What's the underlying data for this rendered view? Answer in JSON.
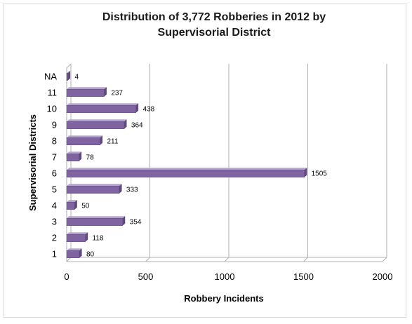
{
  "chart_data": {
    "type": "bar",
    "orientation": "horizontal",
    "title": "Distribution of 3,772 Robberies in 2012 by Supervisorial District",
    "xlabel": "Robbery Incidents",
    "ylabel": "Supervisorial Districts",
    "categories": [
      "1",
      "2",
      "3",
      "4",
      "5",
      "6",
      "7",
      "8",
      "9",
      "10",
      "11",
      "NA"
    ],
    "values": [
      80,
      118,
      354,
      50,
      333,
      1505,
      78,
      211,
      364,
      438,
      237,
      4
    ],
    "xlim": [
      0,
      2000
    ],
    "xticks": [
      "0",
      "500",
      "1000",
      "1500",
      "2000"
    ],
    "grid": true,
    "bar_color": "#8064a2",
    "legend": "none"
  }
}
